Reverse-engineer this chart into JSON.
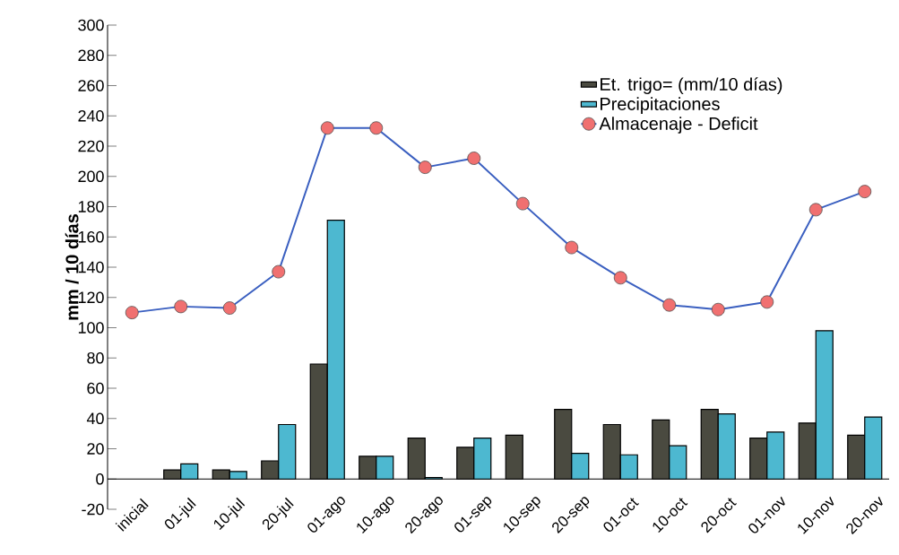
{
  "chart_data": {
    "type": "bar",
    "ylabel": "mm / 10 días",
    "categories": [
      "inicial",
      "01-jul",
      "10-jul",
      "20-jul",
      "01-ago",
      "10-ago",
      "20-ago",
      "01-sep",
      "10-sep",
      "20-sep",
      "01-oct",
      "10-oct",
      "20-oct",
      "01-nov",
      "10-nov",
      "20-nov"
    ],
    "series": [
      {
        "name": "Et. trigo= (mm/10 días)",
        "color": "#4a4a40",
        "values": [
          null,
          6,
          6,
          12,
          76,
          15,
          27,
          21,
          29,
          46,
          36,
          39,
          46,
          27,
          37,
          29
        ]
      },
      {
        "name": "Precipitaciones",
        "color": "#4db8d0",
        "values": [
          null,
          10,
          5,
          36,
          171,
          15,
          1,
          27,
          null,
          17,
          16,
          22,
          43,
          31,
          98,
          41
        ]
      },
      {
        "name": "Almacenaje - Deficit",
        "type": "line",
        "color": "#3a5fc0",
        "colors": [
          "#f07070",
          "#f07070",
          "#f07070",
          "#f07070",
          "#f07070",
          "#f07070",
          "#f07070",
          "#f07070",
          "#f07070",
          "#f07070",
          "#f07070",
          "#f07070",
          "#f07070",
          "#f07070",
          "#f07070",
          "#f07070"
        ],
        "marker": "circle",
        "values": [
          110,
          114,
          113,
          137,
          232,
          232,
          206,
          212,
          182,
          153,
          133,
          115,
          112,
          117,
          178,
          190
        ]
      }
    ],
    "ylim": [
      -20,
      300
    ],
    "yticks": [
      -20,
      0,
      20,
      40,
      60,
      80,
      100,
      120,
      140,
      160,
      180,
      200,
      220,
      240,
      260,
      280,
      300
    ],
    "legend": "top right",
    "grid": false
  }
}
